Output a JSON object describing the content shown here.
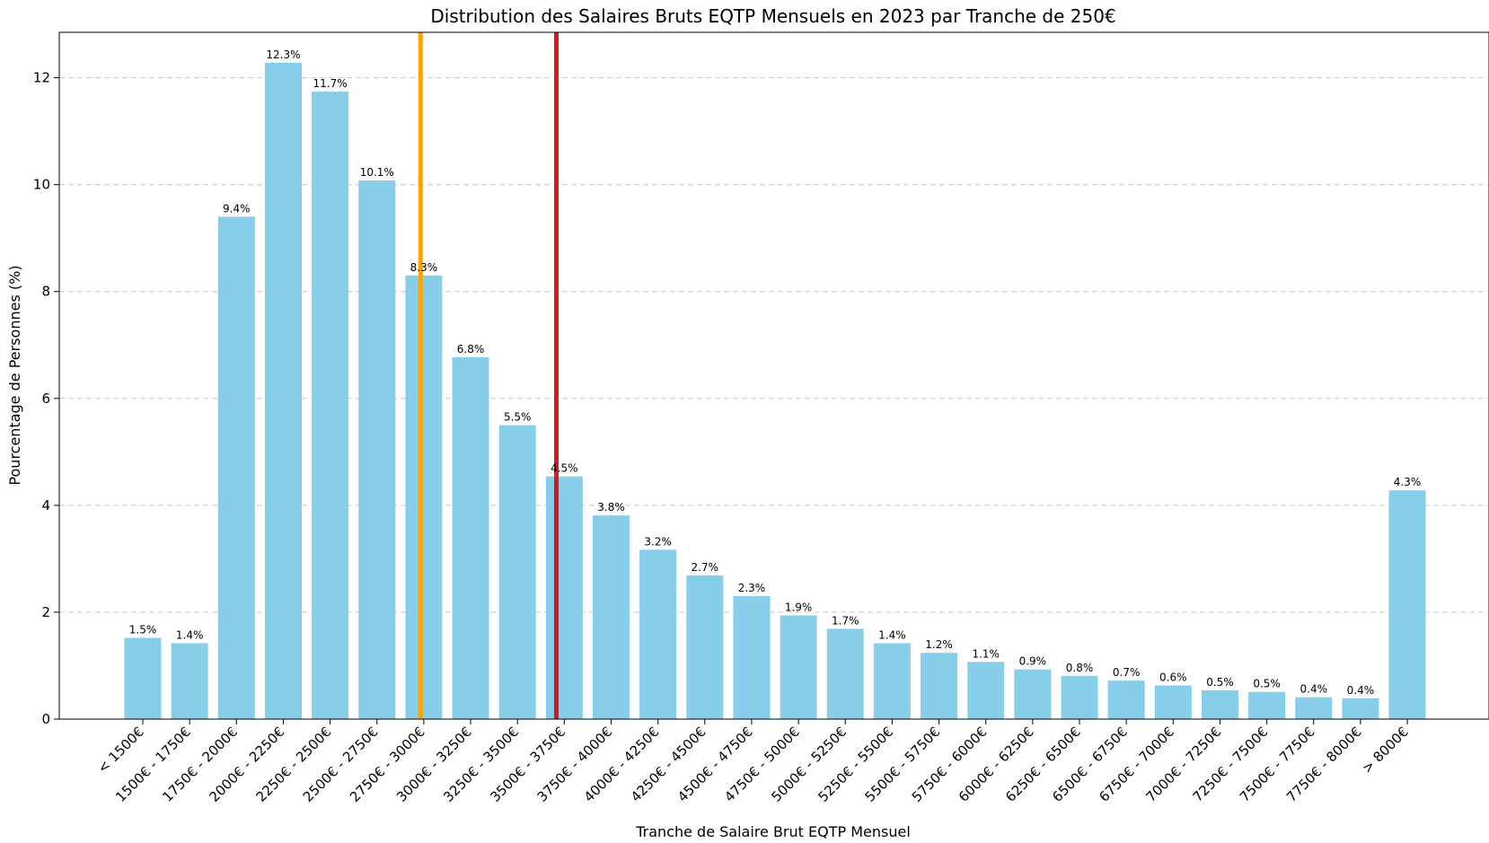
{
  "chart_data": {
    "type": "bar",
    "title": "Distribution des Salaires Bruts EQTP Mensuels en 2023 par Tranche de 250€",
    "xlabel": "Tranche de Salaire Brut EQTP Mensuel",
    "ylabel": "Pourcentage de Personnes (%)",
    "ylim": [
      0,
      12.85
    ],
    "yticks": [
      0,
      2,
      4,
      6,
      8,
      10,
      12
    ],
    "grid": "y-dashed",
    "bar_color": "#87CEEB",
    "categories": [
      "< 1500€",
      "1500€ - 1750€",
      "1750€ - 2000€",
      "2000€ - 2250€",
      "2250€ - 2500€",
      "2500€ - 2750€",
      "2750€ - 3000€",
      "3000€ - 3250€",
      "3250€ - 3500€",
      "3500€ - 3750€",
      "3750€ - 4000€",
      "4000€ - 4250€",
      "4250€ - 4500€",
      "4500€ - 4750€",
      "4750€ - 5000€",
      "5000€ - 5250€",
      "5250€ - 5500€",
      "5500€ - 5750€",
      "5750€ - 6000€",
      "6000€ - 6250€",
      "6250€ - 6500€",
      "6500€ - 6750€",
      "6750€ - 7000€",
      "7000€ - 7250€",
      "7250€ - 7500€",
      "7500€ - 7750€",
      "7750€ - 8000€",
      "> 8000€"
    ],
    "values": [
      1.52,
      1.42,
      9.4,
      12.28,
      11.74,
      10.08,
      8.3,
      6.77,
      5.5,
      4.54,
      3.81,
      3.17,
      2.69,
      2.3,
      1.94,
      1.69,
      1.42,
      1.24,
      1.07,
      0.93,
      0.81,
      0.72,
      0.63,
      0.54,
      0.51,
      0.41,
      0.39,
      4.28
    ],
    "value_labels": [
      "1.5%",
      "1.4%",
      "9.4%",
      "12.3%",
      "11.7%",
      "10.1%",
      "8.3%",
      "6.8%",
      "5.5%",
      "4.5%",
      "3.8%",
      "3.2%",
      "2.7%",
      "2.3%",
      "1.9%",
      "1.7%",
      "1.4%",
      "1.2%",
      "1.1%",
      "0.9%",
      "0.8%",
      "0.7%",
      "0.6%",
      "0.5%",
      "0.5%",
      "0.4%",
      "0.4%",
      "4.3%"
    ],
    "vertical_lines": [
      {
        "x_index": 5.93,
        "color": "#FFA500"
      },
      {
        "x_index": 8.83,
        "color": "#E0141E"
      }
    ]
  }
}
